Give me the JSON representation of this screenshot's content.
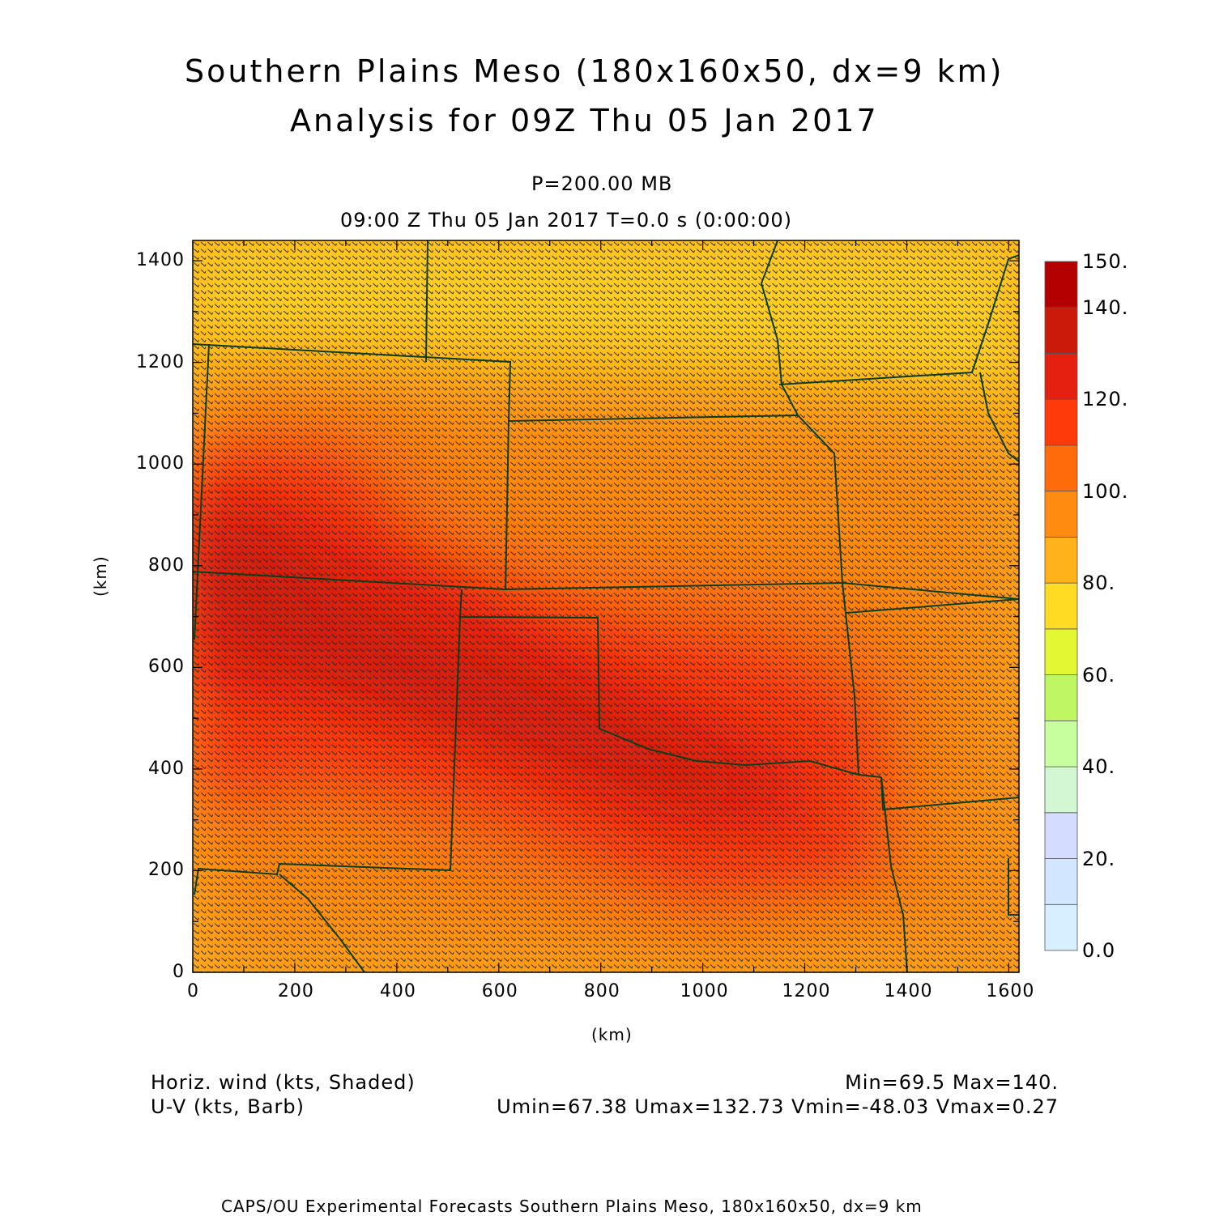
{
  "header": {
    "title_line1": "Southern Plains Meso (180x160x50, dx=9 km)",
    "title_line2": "Analysis for 09Z Thu 05 Jan 2017",
    "pressure": "P=200.00 MB",
    "valid_time": "09:00 Z Thu 05 Jan 2017    T=0.0 s (0:00:00)"
  },
  "axes": {
    "xlabel": "(km)",
    "ylabel": "(km)",
    "x_ticks": [
      "0",
      "200",
      "400",
      "600",
      "800",
      "1000",
      "1200",
      "1400",
      "1600"
    ],
    "y_ticks": [
      "0",
      "200",
      "400",
      "600",
      "800",
      "1000",
      "1200",
      "1400"
    ]
  },
  "colorbar": {
    "labels": [
      "150.",
      "140.",
      "120.",
      "100.",
      "80.",
      "60.",
      "40.",
      "20.",
      "0.0"
    ],
    "levels": [
      0,
      10,
      20,
      30,
      40,
      50,
      60,
      70,
      80,
      90,
      100,
      110,
      120,
      130,
      140,
      150
    ],
    "colors": [
      "#e6f6ff",
      "#d7efff",
      "#d2e6ff",
      "#d4dcff",
      "#d2f7d2",
      "#c8ff9e",
      "#bff764",
      "#e3f733",
      "#ffdb24",
      "#ffb21a",
      "#ff8c10",
      "#ff6a0a",
      "#ff3a0a",
      "#e62010",
      "#cc1a0a",
      "#b40000"
    ]
  },
  "legend": {
    "field1": "Horiz. wind (kts, Shaded)",
    "field2": "U-V (kts, Barb)",
    "minmax": "Min=69.5 Max=140.",
    "uv_stats": "Umin=67.38 Umax=132.73 Vmin=-48.03 Vmax=0.27"
  },
  "footer": "CAPS/OU Experimental Forecasts   Southern Plains Meso, 180x160x50, dx=9 km",
  "map_data": {
    "domain_km": {
      "x": [
        0,
        1620
      ],
      "y": [
        0,
        1440
      ]
    },
    "base_color": "#ffb21a",
    "boundary_color": "#0b3d1a",
    "barb_color": "#2b2b2b"
  }
}
